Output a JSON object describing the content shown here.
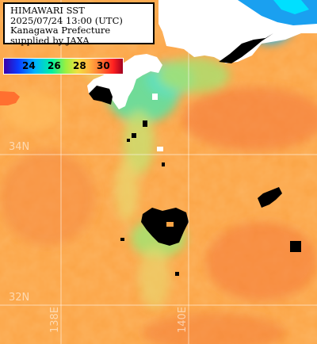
{
  "title": {
    "line1": "HIMAWARI SST",
    "line2": "2025/07/24 13:00 (UTC)",
    "line3": "Kanagawa Prefecture",
    "line4": "supplied by JAXA"
  },
  "color_scale": {
    "ticks": [
      "24",
      "26",
      "28",
      "30"
    ],
    "colors": {
      "cool": "#3a00a8",
      "mid": "#9cf040",
      "warm": "#ff7030",
      "hot": "#a00020"
    }
  },
  "grid_labels": {
    "lat_34": "34N",
    "lat_32": "32N",
    "lon_138": "138E",
    "lon_140": "140E"
  },
  "colors": {
    "sea_warm": "#fba445",
    "sea_hot": "#f47a3a",
    "sea_cool": "#c8e070",
    "sea_cold": "#60e0c0",
    "land": "#ffffff",
    "cloud": "#000000",
    "grid": "#ffffff"
  }
}
